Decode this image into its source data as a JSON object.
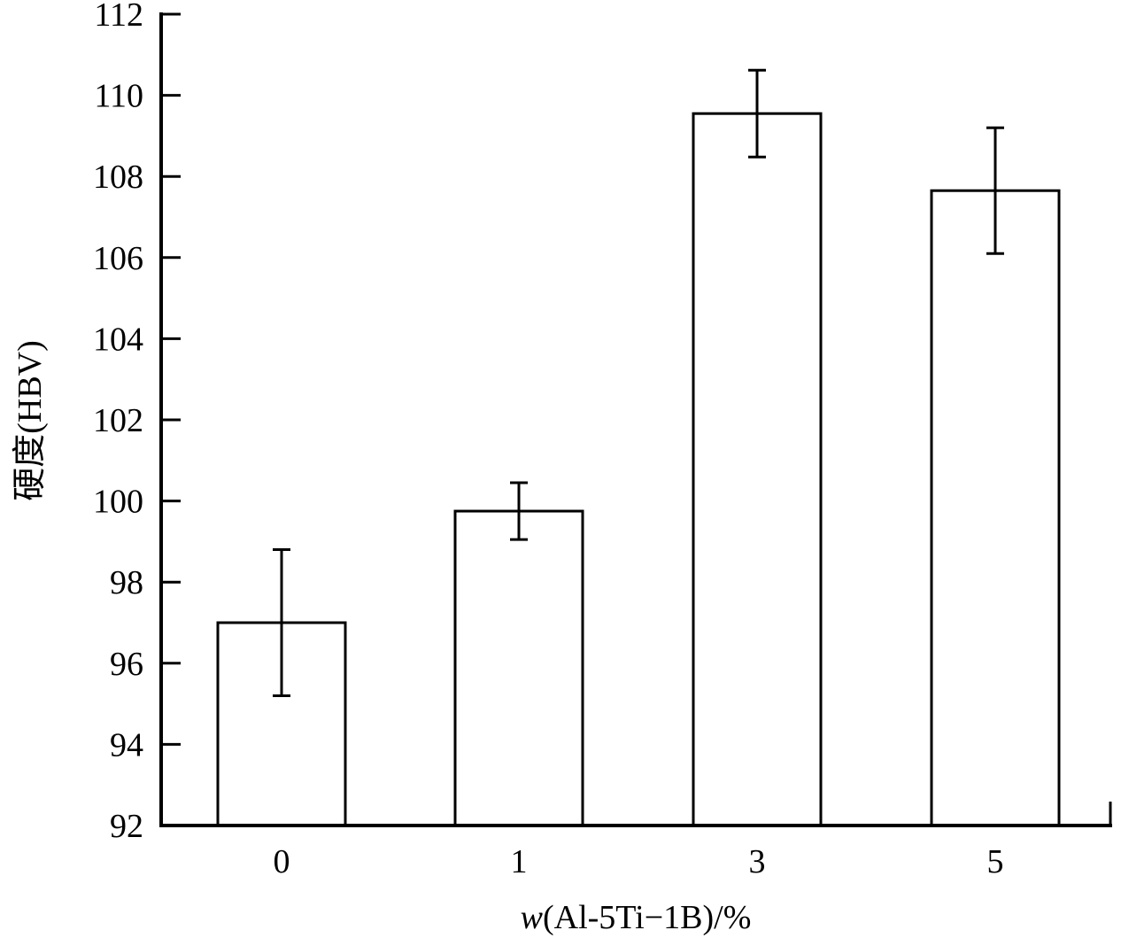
{
  "chart_data": {
    "type": "bar",
    "title": "",
    "xlabel_italic": "w",
    "xlabel_rest": "(Al-5Ti−1B)/%",
    "ylabel": "硬度(HBV)",
    "categories": [
      "0",
      "1",
      "3",
      "5"
    ],
    "values": [
      97.0,
      99.75,
      109.55,
      107.65
    ],
    "errors": [
      1.8,
      0.7,
      1.07,
      1.55
    ],
    "ylim": [
      92,
      112
    ],
    "yticks": [
      92,
      94,
      96,
      98,
      100,
      102,
      104,
      106,
      108,
      110,
      112
    ],
    "grid": false,
    "bar_fill": "#ffffff",
    "bar_stroke": "#000000"
  }
}
